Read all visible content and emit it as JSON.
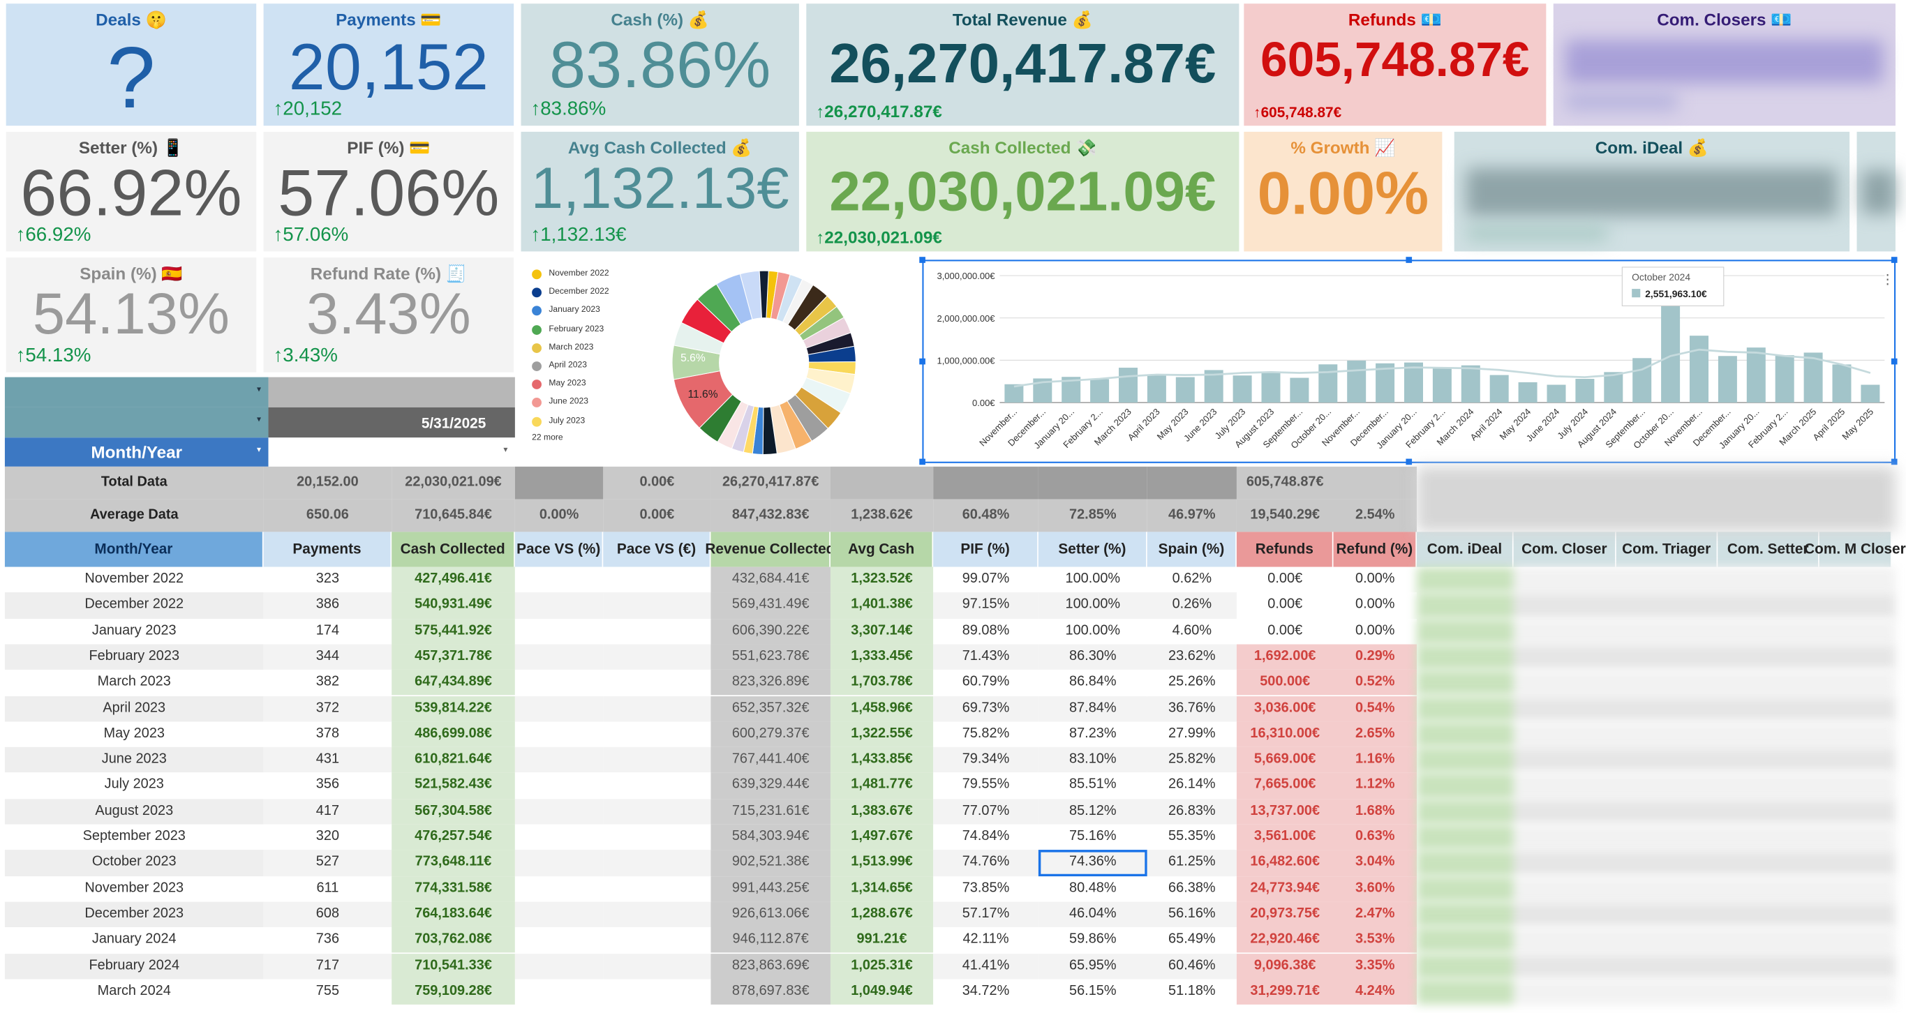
{
  "kpis": {
    "deals": {
      "title": "Deals 🤫",
      "value": "?"
    },
    "payments": {
      "title": "Payments 💳",
      "value": "20,152",
      "delta": "20,152"
    },
    "cash_pct": {
      "title": "Cash (%) 💰",
      "value": "83.86%",
      "delta": "83.86%"
    },
    "total_revenue": {
      "title": "Total Revenue 💰",
      "value": "26,270,417.87€",
      "delta": "26,270,417.87€"
    },
    "refunds": {
      "title": "Refunds 💶",
      "value": "605,748.87€",
      "delta": "605,748.87€"
    },
    "com_closers": {
      "title": "Com. Closers 💶"
    },
    "setter_pct": {
      "title": "Setter (%) 📱",
      "value": "66.92%",
      "delta": "66.92%"
    },
    "pif_pct": {
      "title": "PIF (%) 💳",
      "value": "57.06%",
      "delta": "57.06%"
    },
    "avg_cash": {
      "title": "Avg Cash Collected 💰",
      "value": "1,132.13€",
      "delta": "1,132.13€"
    },
    "cash_collected": {
      "title": "Cash Collected 💸",
      "value": "22,030,021.09€",
      "delta": "22,030,021.09€"
    },
    "growth": {
      "title": "% Growth 📈",
      "value": "0.00%"
    },
    "com_ideal": {
      "title": "Com. iDeal 💰"
    },
    "spain_pct": {
      "title": "Spain (%) 🇪🇸",
      "value": "54.13%",
      "delta": "54.13%"
    },
    "refund_rate": {
      "title": "Refund Rate (%) 🧾",
      "value": "3.43%",
      "delta": "3.43%"
    }
  },
  "controls": {
    "date": "5/31/2025",
    "month_year_label": "Month/Year"
  },
  "colors": {
    "accent_blue": "#1f5fa8",
    "positive": "#13934a",
    "refund_red": "#d10f0f",
    "cash_green": "#6aa84f",
    "growth_orange": "#e69138",
    "teal": "#45818e"
  },
  "pie": {
    "legend": [
      "November 2022",
      "December 2022",
      "January 2023",
      "February 2023",
      "March 2023",
      "April 2023",
      "May 2023",
      "June 2023",
      "July 2023"
    ],
    "legend_colors": [
      "#f4c20d",
      "#0b3e8e",
      "#3a83d6",
      "#4fa853",
      "#e8c548",
      "#9e9e9e",
      "#e5686c",
      "#f29893",
      "#f9d85a"
    ],
    "more": "22 more",
    "label_small": "5.6%",
    "label_large": "11.6%"
  },
  "chart_data": {
    "type": "bar",
    "categories": [
      "November 2022",
      "December 2022",
      "January 2023",
      "February 2023",
      "March 2023",
      "April 2023",
      "May 2023",
      "June 2023",
      "July 2023",
      "August 2023",
      "September 2023",
      "October 2023",
      "November 2023",
      "December 2023",
      "January 2024",
      "February 2024",
      "March 2024",
      "April 2024",
      "May 2024",
      "June 2024",
      "July 2024",
      "August 2024",
      "September 2024",
      "October 2024",
      "November 2024",
      "December 2024",
      "January 2025",
      "February 2025",
      "March 2025",
      "April 2025",
      "May 2025"
    ],
    "tick_labels": [
      "November...",
      "December...",
      "January 20...",
      "February 2...",
      "March 2023",
      "April 2023",
      "May 2023",
      "June 2023",
      "July 2023",
      "August 2023",
      "September...",
      "October 20...",
      "November...",
      "December...",
      "January 20...",
      "February 2...",
      "March 2024",
      "April 2024",
      "May 2024",
      "June 2024",
      "July 2024",
      "August 2024",
      "September...",
      "October 20...",
      "November...",
      "December...",
      "January 20...",
      "February 2...",
      "March 2025",
      "April 2025",
      "May 2025"
    ],
    "values": [
      432684,
      569431,
      606390,
      551624,
      823327,
      652357,
      600279,
      767441,
      639329,
      715232,
      584304,
      902521,
      991443,
      926613,
      946113,
      823864,
      878698,
      650000,
      480000,
      420000,
      560000,
      720000,
      1050000,
      2551963,
      1580000,
      1100000,
      1300000,
      1120000,
      1180000,
      900000,
      420000
    ],
    "trend": [
      380000,
      480000,
      520000,
      560000,
      620000,
      660000,
      650000,
      660000,
      700000,
      720000,
      700000,
      720000,
      760000,
      800000,
      830000,
      820000,
      810000,
      770000,
      700000,
      620000,
      600000,
      650000,
      780000,
      1100000,
      1250000,
      1200000,
      1180000,
      1100000,
      1050000,
      900000,
      700000
    ],
    "y_ticks": [
      "0.00€",
      "1,000,000.00€",
      "2,000,000.00€",
      "3,000,000.00€"
    ],
    "ylim": [
      0,
      3000000
    ],
    "tooltip": {
      "label": "October 2024",
      "value": "2,551,963.10€"
    }
  },
  "table": {
    "header_left": "Month/Year",
    "total": {
      "label": "Total Data",
      "cells": [
        "20,152.00",
        "22,030,021.09€",
        "",
        "0.00€",
        "26,270,417.87€",
        "",
        "",
        "",
        "",
        "605,748.87€",
        ""
      ]
    },
    "average": {
      "label": "Average Data",
      "cells": [
        "650.06",
        "710,645.84€",
        "0.00%",
        "0.00€",
        "847,432.83€",
        "1,238.62€",
        "60.48%",
        "72.85%",
        "46.97%",
        "19,540.29€",
        "2.54%"
      ]
    },
    "columns": [
      "Month/Year",
      "Payments",
      "Cash Collected",
      "Pace VS (%)",
      "Pace VS (€)",
      "Revenue Collected",
      "Avg Cash",
      "PIF (%)",
      "Setter (%)",
      "Spain (%)",
      "Refunds",
      "Refund (%)",
      "Com. iDeal",
      "Com. Closer",
      "Com. Triager",
      "Com. Setter",
      "Com. M Closer"
    ],
    "rows": [
      [
        "November 2022",
        "323",
        "427,496.41€",
        "",
        "",
        "432,684.41€",
        "1,323.52€",
        "99.07%",
        "100.00%",
        "0.62%",
        "0.00€",
        "0.00%"
      ],
      [
        "December 2022",
        "386",
        "540,931.49€",
        "",
        "",
        "569,431.49€",
        "1,401.38€",
        "97.15%",
        "100.00%",
        "0.26%",
        "0.00€",
        "0.00%"
      ],
      [
        "January 2023",
        "174",
        "575,441.92€",
        "",
        "",
        "606,390.22€",
        "3,307.14€",
        "89.08%",
        "100.00%",
        "4.60%",
        "0.00€",
        "0.00%"
      ],
      [
        "February 2023",
        "344",
        "457,371.78€",
        "",
        "",
        "551,623.78€",
        "1,333.45€",
        "71.43%",
        "86.30%",
        "23.62%",
        "1,692.00€",
        "0.29%"
      ],
      [
        "March 2023",
        "382",
        "647,434.89€",
        "",
        "",
        "823,326.89€",
        "1,703.78€",
        "60.79%",
        "86.84%",
        "25.26%",
        "500.00€",
        "0.52%"
      ],
      [
        "April 2023",
        "372",
        "539,814.22€",
        "",
        "",
        "652,357.32€",
        "1,458.96€",
        "69.73%",
        "87.84%",
        "36.76%",
        "3,036.00€",
        "0.54%"
      ],
      [
        "May 2023",
        "378",
        "486,699.08€",
        "",
        "",
        "600,279.37€",
        "1,322.55€",
        "75.82%",
        "87.23%",
        "27.99%",
        "16,310.00€",
        "2.65%"
      ],
      [
        "June 2023",
        "431",
        "610,821.64€",
        "",
        "",
        "767,441.40€",
        "1,433.85€",
        "79.34%",
        "83.10%",
        "25.82%",
        "5,669.00€",
        "1.16%"
      ],
      [
        "July 2023",
        "356",
        "521,582.43€",
        "",
        "",
        "639,329.44€",
        "1,481.77€",
        "79.55%",
        "85.51%",
        "26.14%",
        "7,665.00€",
        "1.12%"
      ],
      [
        "August 2023",
        "417",
        "567,304.58€",
        "",
        "",
        "715,231.61€",
        "1,383.67€",
        "77.07%",
        "85.12%",
        "26.83%",
        "13,737.00€",
        "1.68%"
      ],
      [
        "September 2023",
        "320",
        "476,257.54€",
        "",
        "",
        "584,303.94€",
        "1,497.67€",
        "74.84%",
        "75.16%",
        "55.35%",
        "3,561.00€",
        "0.63%"
      ],
      [
        "October 2023",
        "527",
        "773,648.11€",
        "",
        "",
        "902,521.38€",
        "1,513.99€",
        "74.76%",
        "74.36%",
        "61.25%",
        "16,482.60€",
        "3.04%"
      ],
      [
        "November 2023",
        "611",
        "774,331.58€",
        "",
        "",
        "991,443.25€",
        "1,314.65€",
        "73.85%",
        "80.48%",
        "66.38%",
        "24,773.94€",
        "3.60%"
      ],
      [
        "December 2023",
        "608",
        "764,183.64€",
        "",
        "",
        "926,613.06€",
        "1,288.67€",
        "57.17%",
        "46.04%",
        "56.16%",
        "20,973.75€",
        "2.47%"
      ],
      [
        "January 2024",
        "736",
        "703,762.08€",
        "",
        "",
        "946,112.87€",
        "991.21€",
        "42.11%",
        "59.86%",
        "65.49%",
        "22,920.46€",
        "3.53%"
      ],
      [
        "February 2024",
        "717",
        "710,541.33€",
        "",
        "",
        "823,863.69€",
        "1,025.31€",
        "41.41%",
        "65.95%",
        "60.46%",
        "9,096.38€",
        "3.35%"
      ],
      [
        "March 2024",
        "755",
        "759,109.28€",
        "",
        "",
        "878,697.83€",
        "1,049.94€",
        "34.72%",
        "56.15%",
        "51.18%",
        "31,299.71€",
        "4.24%"
      ]
    ]
  }
}
